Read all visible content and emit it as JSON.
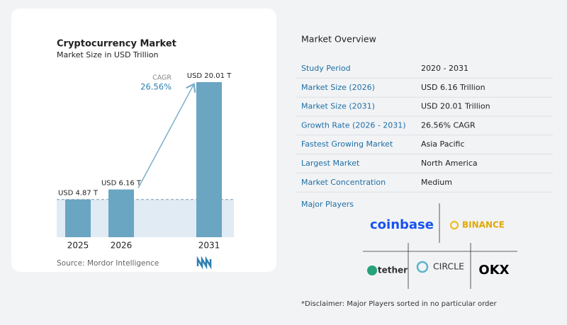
{
  "chart_data": {
    "type": "bar",
    "title": "Cryptocurrency Market",
    "subtitle": "Market Size in USD Trillion",
    "categories": [
      "2025",
      "2026",
      "2031"
    ],
    "values": [
      4.87,
      6.16,
      20.01
    ],
    "value_labels": [
      "USD 4.87 T",
      "USD 6.16 T",
      "USD 20.01 T"
    ],
    "color": "#6aa5c2",
    "annotation": {
      "label": "CAGR",
      "value": "26.56%"
    },
    "source": "Source: Mordor Intelligence"
  },
  "overview": {
    "title": "Market Overview",
    "rows": [
      [
        "Study Period",
        "2020 - 2031"
      ],
      [
        "Market Size (2026)",
        "USD 6.16 Trillion"
      ],
      [
        "Market Size (2031)",
        "USD 20.01 Trillion"
      ],
      [
        "Growth Rate (2026 - 2031)",
        "26.56% CAGR"
      ],
      [
        "Fastest Growing Market",
        "Asia Pacific"
      ],
      [
        "Largest Market",
        "North America"
      ],
      [
        "Market Concentration",
        "Medium"
      ]
    ]
  },
  "players": {
    "title": "Major Players",
    "names": [
      "coinbase",
      "BINANCE",
      "tether",
      "CIRCLE",
      "OKX"
    ]
  },
  "disclaimer": "*Disclaimer: Major Players sorted in no particular order"
}
